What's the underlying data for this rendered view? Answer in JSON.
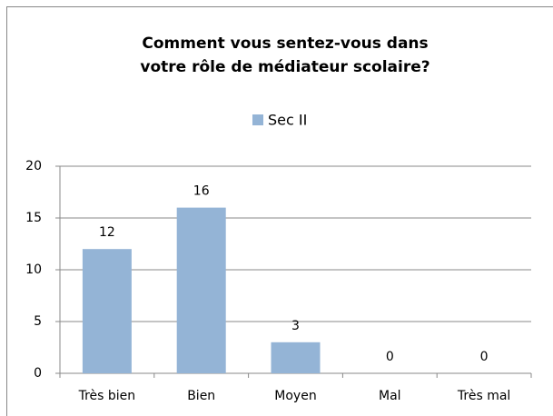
{
  "chart_data": {
    "type": "bar",
    "title": [
      "Comment vous sentez-vous dans",
      "votre rôle de médiateur scolaire?"
    ],
    "categories": [
      "Très bien",
      "Bien",
      "Moyen",
      "Mal",
      "Très mal"
    ],
    "series": [
      {
        "name": "Sec II",
        "color": "#94b4d6",
        "values": [
          12,
          16,
          3,
          0,
          0
        ]
      }
    ],
    "ylim": [
      0,
      20
    ],
    "yticks": [
      0,
      5,
      10,
      15,
      20
    ],
    "grid": true,
    "legend": "top",
    "data_labels": true
  }
}
